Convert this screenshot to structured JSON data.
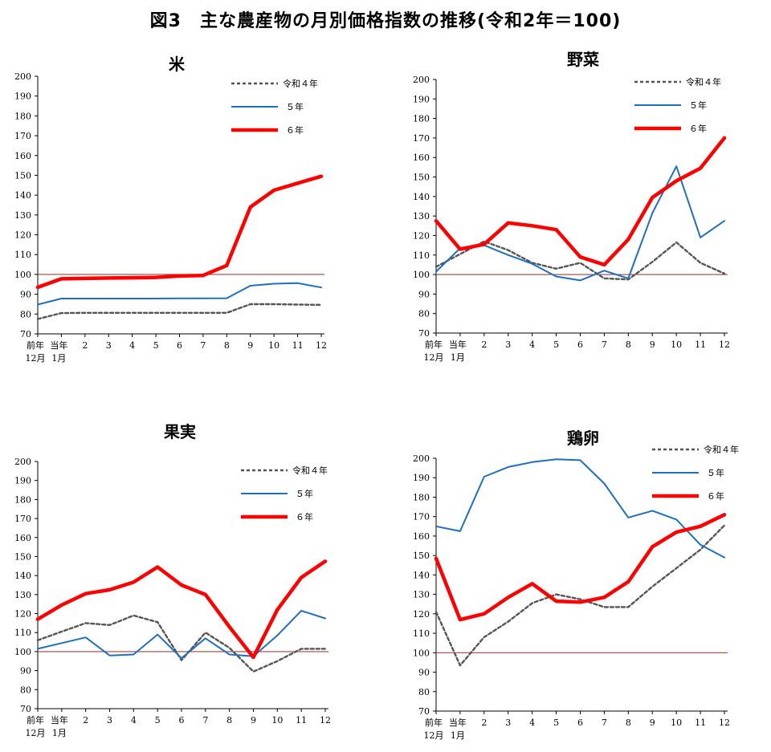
{
  "page_title": "図3　主な農産物の月別価格指数の推移(令和2年＝100)",
  "colors": {
    "r4": "#555555",
    "r5": "#1f6fbf",
    "r6": "#ff0000",
    "baseline": "#a0443c",
    "axis": "#000000"
  },
  "chart_data": [
    {
      "type": "line",
      "title": "米",
      "categories": [
        "前年\n12月",
        "当年\n1月",
        "2",
        "3",
        "4",
        "5",
        "6",
        "7",
        "8",
        "9",
        "10",
        "11",
        "12"
      ],
      "ylim": [
        70,
        200
      ],
      "yticks": [
        70,
        80,
        90,
        100,
        110,
        120,
        130,
        140,
        150,
        160,
        170,
        180,
        190,
        200
      ],
      "reference_line": 100,
      "legend_position": "top-right",
      "series": [
        {
          "name": "令和４年",
          "style": "dashed",
          "values": [
            77.5,
            80.5,
            80.6,
            80.6,
            80.6,
            80.6,
            80.6,
            80.6,
            80.6,
            85.0,
            85.0,
            84.8,
            84.6
          ]
        },
        {
          "name": "５年",
          "style": "solid",
          "values": [
            84.8,
            87.8,
            87.8,
            87.8,
            87.8,
            87.8,
            87.9,
            87.9,
            88.0,
            94.3,
            95.3,
            95.6,
            93.4
          ]
        },
        {
          "name": "６年",
          "style": "bold",
          "values": [
            93.5,
            97.8,
            98.0,
            98.2,
            98.3,
            98.5,
            99.2,
            99.5,
            104.5,
            134.0,
            142.5,
            146.0,
            149.5
          ]
        }
      ]
    },
    {
      "type": "line",
      "title": "野菜",
      "categories": [
        "前年\n12月",
        "当年\n1月",
        "2",
        "3",
        "4",
        "5",
        "6",
        "7",
        "8",
        "9",
        "10",
        "11",
        "12"
      ],
      "ylim": [
        70,
        200
      ],
      "yticks": [
        70,
        80,
        90,
        100,
        110,
        120,
        130,
        140,
        150,
        160,
        170,
        180,
        190,
        200
      ],
      "reference_line": 100,
      "legend_position": "top-right",
      "series": [
        {
          "name": "令和４年",
          "style": "dashed",
          "values": [
            104.0,
            110.5,
            117.0,
            112.5,
            106.0,
            103.0,
            106.0,
            98.0,
            97.5,
            106.5,
            116.5,
            106.0,
            100.5
          ]
        },
        {
          "name": "５年",
          "style": "solid",
          "values": [
            101.5,
            113.5,
            115.0,
            110.0,
            105.5,
            99.0,
            97.0,
            102.0,
            98.0,
            131.5,
            155.5,
            119.0,
            127.5
          ]
        },
        {
          "name": "６年",
          "style": "bold",
          "values": [
            127.5,
            113.0,
            115.5,
            126.5,
            125.0,
            123.0,
            109.0,
            105.0,
            118.0,
            139.5,
            148.0,
            154.5,
            170.0
          ]
        }
      ]
    },
    {
      "type": "line",
      "title": "果実",
      "categories": [
        "前年\n12月",
        "当年\n1月",
        "2",
        "3",
        "4",
        "5",
        "6",
        "7",
        "8",
        "9",
        "10",
        "11",
        "12"
      ],
      "ylim": [
        70,
        200
      ],
      "yticks": [
        70,
        80,
        90,
        100,
        110,
        120,
        130,
        140,
        150,
        160,
        170,
        180,
        190,
        200
      ],
      "reference_line": 100,
      "legend_position": "top-right",
      "series": [
        {
          "name": "令和４年",
          "style": "dashed",
          "values": [
            106.0,
            110.5,
            115.0,
            114.0,
            119.0,
            115.5,
            95.5,
            110.0,
            102.0,
            89.5,
            95.0,
            101.5,
            101.5
          ]
        },
        {
          "name": "５年",
          "style": "solid",
          "values": [
            101.5,
            104.5,
            107.5,
            98.0,
            98.5,
            109.0,
            96.5,
            107.0,
            98.5,
            97.5,
            108.5,
            121.5,
            117.5
          ]
        },
        {
          "name": "６年",
          "style": "bold",
          "values": [
            117.0,
            124.5,
            130.5,
            132.5,
            136.5,
            144.5,
            135.0,
            130.0,
            113.0,
            97.0,
            122.0,
            139.0,
            147.5
          ]
        }
      ]
    },
    {
      "type": "line",
      "title": "鶏卵",
      "categories": [
        "前年\n12月",
        "当年\n1月",
        "2",
        "3",
        "4",
        "5",
        "6",
        "7",
        "8",
        "9",
        "10",
        "11",
        "12"
      ],
      "ylim": [
        70,
        200
      ],
      "yticks": [
        70,
        80,
        90,
        100,
        110,
        120,
        130,
        140,
        150,
        160,
        170,
        180,
        190,
        200
      ],
      "reference_line": 100,
      "legend_position": "top-right",
      "series": [
        {
          "name": "令和４年",
          "style": "dashed",
          "values": [
            121.0,
            93.5,
            108.0,
            116.0,
            125.5,
            130.0,
            127.5,
            123.5,
            123.5,
            134.0,
            143.5,
            153.0,
            165.5
          ]
        },
        {
          "name": "５年",
          "style": "solid",
          "values": [
            165.0,
            162.5,
            190.5,
            195.5,
            198.0,
            199.5,
            199.0,
            187.0,
            169.5,
            173.0,
            168.5,
            155.5,
            149.0
          ]
        },
        {
          "name": "６年",
          "style": "bold",
          "values": [
            148.5,
            117.0,
            120.0,
            128.5,
            135.5,
            126.5,
            126.0,
            128.5,
            136.5,
            154.5,
            162.0,
            165.0,
            171.0
          ]
        }
      ]
    }
  ]
}
